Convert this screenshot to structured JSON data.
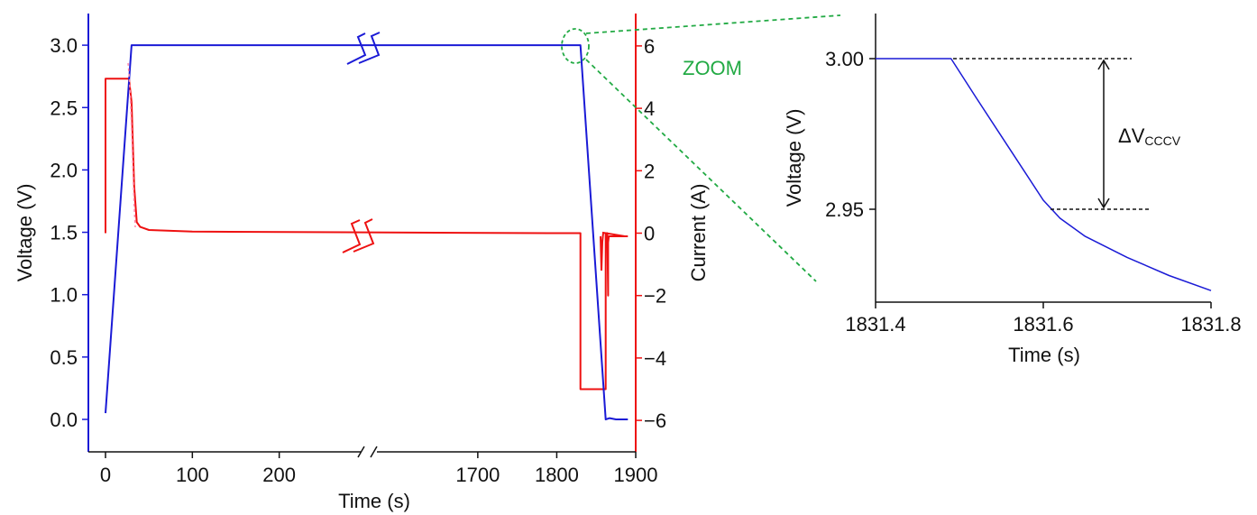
{
  "colors": {
    "voltage": "#1a1ad6",
    "current": "#ee1111",
    "zoom": "#22aa44",
    "text": "#111111"
  },
  "main": {
    "xlabel": "Time (s)",
    "ylabel_left": "Voltage (V)",
    "ylabel_right": "Current (A)",
    "zoom_label": "ZOOM"
  },
  "inset": {
    "xlabel": "Time (s)",
    "ylabel": "Voltage (V)",
    "delta_label": "ΔV",
    "delta_sub": "CCCV"
  },
  "chart_data": [
    {
      "type": "line",
      "xlabel": "Time (s)",
      "ylabel": "Voltage (V)",
      "y2label": "Current (A)",
      "broken_x_axis": true,
      "x_segments": [
        [
          -20,
          300
        ],
        [
          1570,
          1900
        ]
      ],
      "xticks": [
        0,
        100,
        200,
        1700,
        1800,
        1900
      ],
      "xtick_labels": [
        "0",
        "100",
        "200",
        "1700",
        "1800",
        "1900"
      ],
      "ylim": [
        -0.1,
        3.25
      ],
      "yticks": [
        0.0,
        0.5,
        1.0,
        1.5,
        2.0,
        2.5,
        3.0
      ],
      "ytick_labels": [
        "0.0",
        "0.5",
        "1.0",
        "1.5",
        "2.0",
        "2.5",
        "3.0"
      ],
      "y2lim": [
        -6.8,
        6.9
      ],
      "y2ticks": [
        -6,
        -4,
        -2,
        0,
        2,
        4,
        6
      ],
      "y2tick_labels": [
        "−6",
        "−4",
        "−2",
        "0",
        "2",
        "4",
        "6"
      ],
      "series": [
        {
          "axis": "left",
          "color": "#1a1ad6",
          "x": [
            0,
            30,
            1790,
            1830,
            1862,
            1867,
            1875,
            1890
          ],
          "y": [
            0.05,
            3.0,
            3.0,
            3.0,
            0.0,
            0.01,
            0.0,
            0.0
          ]
        },
        {
          "axis": "right",
          "color": "#ee1111",
          "x": [
            0,
            0,
            0.5,
            27,
            30,
            33,
            36,
            40,
            50,
            100,
            1790,
            1830,
            1830,
            1862,
            1862,
            1864,
            1865,
            1865,
            1866,
            1867,
            1875,
            1890
          ],
          "y": [
            0,
            4.95,
            4.95,
            4.95,
            4.2,
            1.5,
            0.35,
            0.2,
            0.1,
            0.05,
            0.0,
            0.0,
            -5.0,
            -5.0,
            0.0,
            0.0,
            -2.0,
            -0.3,
            -0.1,
            -0.1,
            -0.1,
            -0.1
          ]
        }
      ]
    },
    {
      "type": "line",
      "xlabel": "Time (s)",
      "ylabel": "Voltage (V)",
      "xlim": [
        1831.4,
        1831.8
      ],
      "xticks": [
        1831.4,
        1831.6,
        1831.8
      ],
      "xtick_labels": [
        "1831.4",
        "1831.6",
        "1831.8"
      ],
      "ylim": [
        2.919,
        3.015
      ],
      "yticks": [
        2.95,
        3.0
      ],
      "ytick_labels": [
        "2.95",
        "3.00"
      ],
      "series": [
        {
          "color": "#1a1ad6",
          "x": [
            1831.4,
            1831.49,
            1831.52,
            1831.56,
            1831.6,
            1831.62,
            1831.65,
            1831.7,
            1831.75,
            1831.8
          ],
          "y": [
            3.0,
            3.0,
            2.987,
            2.97,
            2.953,
            2.947,
            2.941,
            2.934,
            2.928,
            2.923
          ]
        }
      ],
      "annotation": {
        "label": "ΔV",
        "subscript": "CCCV",
        "y_from": 2.95,
        "y_to": 3.0
      }
    }
  ]
}
